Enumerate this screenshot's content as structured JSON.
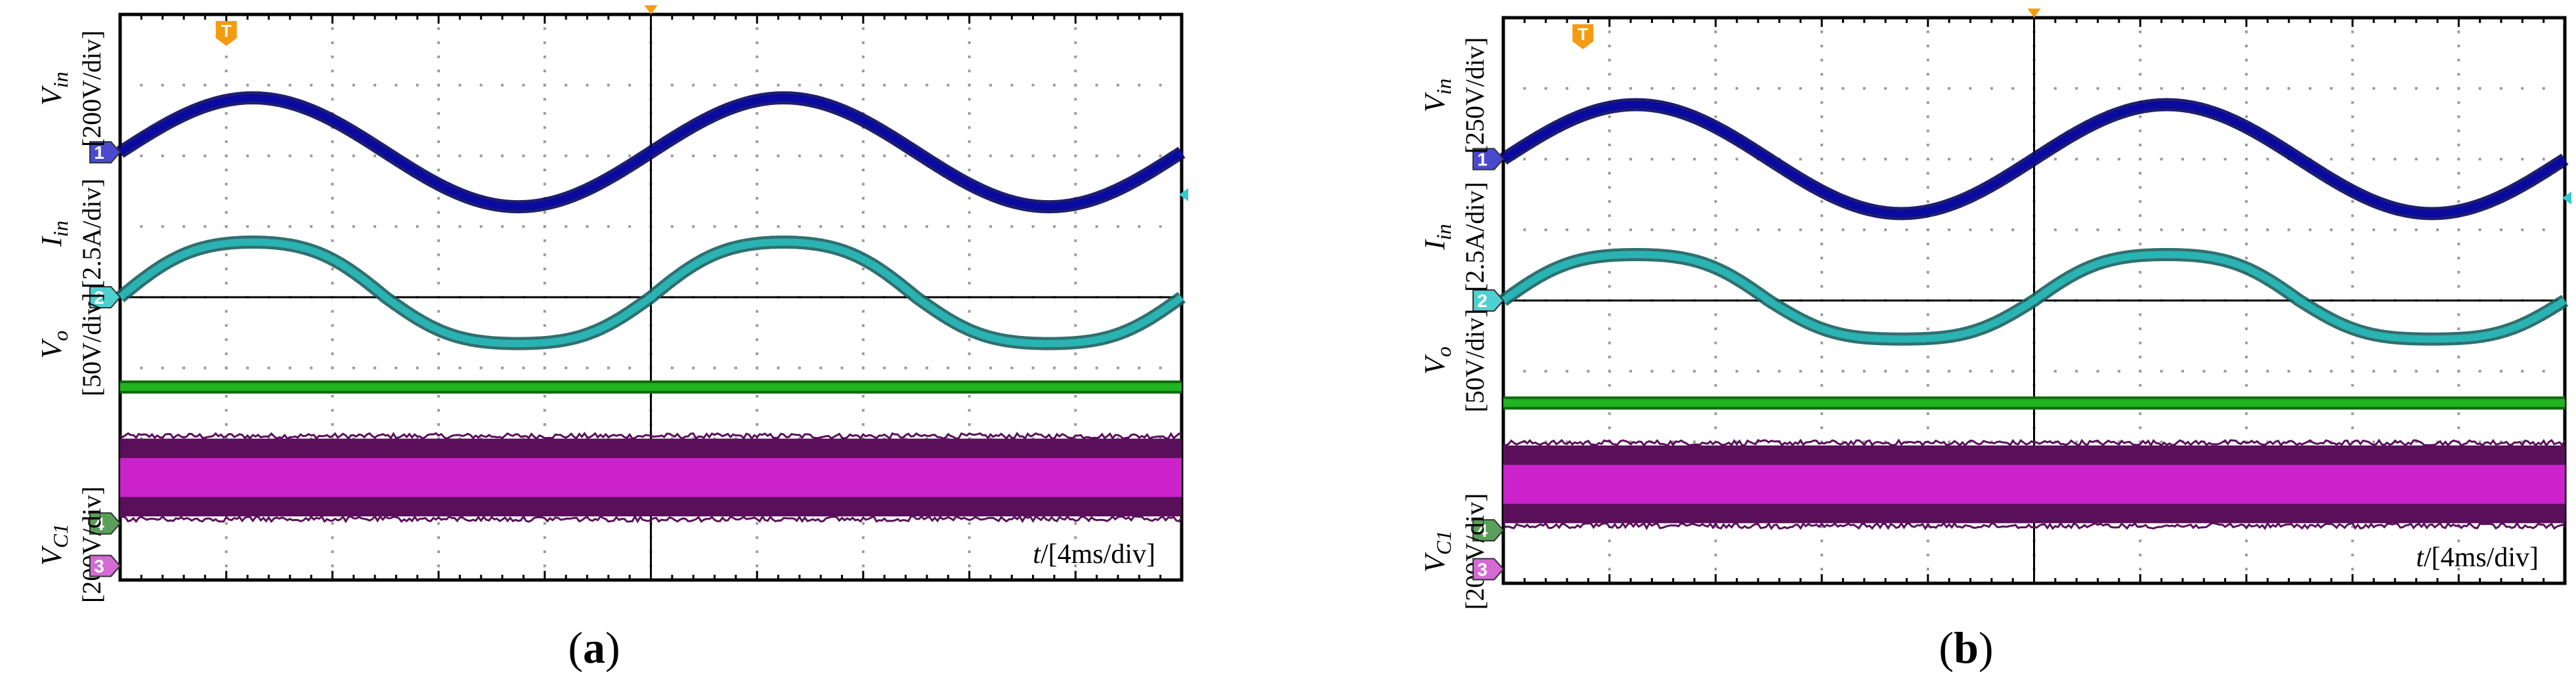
{
  "colors": {
    "vin": "#0a0aa0",
    "iin": "#2ab3b3",
    "vo": "#21b321",
    "vc1": "#cc22cc",
    "grid": "#9a9a9a",
    "trigger": "#f39c12"
  },
  "chart_data": [
    {
      "type": "line",
      "panel": "a",
      "caption": "a",
      "time_scale": "t/[4ms/div]",
      "x_divisions": 10,
      "y_divisions": 8,
      "x_range_div": [
        0,
        10
      ],
      "grid": true,
      "series": [
        {
          "id": "vin",
          "label_main": "V",
          "label_sub": "in",
          "scale": "[200V/div]",
          "marker": "1",
          "kind": "sine",
          "center_div": 6.05,
          "amplitude_div": 0.77,
          "cycles": 2,
          "phase_deg": 0
        },
        {
          "id": "iin",
          "label_main": "I",
          "label_sub": "in",
          "scale": "[2.5A/div]",
          "marker": "2",
          "kind": "current",
          "center_div": 4.0,
          "amplitude_div": 0.83,
          "cycles": 2,
          "phase_deg": 0
        },
        {
          "id": "vo",
          "label_main": "V",
          "label_sub": "o",
          "scale": "[50V/div]",
          "marker": "",
          "kind": "dc",
          "level_div": 2.73
        },
        {
          "id": "vc1",
          "label_main": "V",
          "label_sub": "C1",
          "scale": "[200V/div]",
          "marker": "4",
          "kind": "ripple",
          "level_div": 1.45,
          "band_div": 0.55
        },
        {
          "id": "ref3",
          "label_main": "",
          "label_sub": "",
          "scale": "",
          "marker": "3",
          "kind": "marker-only",
          "level_div": 0.2
        }
      ],
      "trigger_label": "T"
    },
    {
      "type": "line",
      "panel": "b",
      "caption": "b",
      "time_scale": "t/[4ms/div]",
      "x_divisions": 10,
      "y_divisions": 8,
      "x_range_div": [
        0,
        10
      ],
      "grid": true,
      "series": [
        {
          "id": "vin",
          "label_main": "V",
          "label_sub": "in",
          "scale": "[250V/div]",
          "marker": "1",
          "kind": "sine",
          "center_div": 6.0,
          "amplitude_div": 0.77,
          "cycles": 2,
          "phase_deg": 0
        },
        {
          "id": "iin",
          "label_main": "I",
          "label_sub": "in",
          "scale": "[2.5A/div]",
          "marker": "2",
          "kind": "current",
          "center_div": 4.0,
          "amplitude_div": 0.7,
          "cycles": 2,
          "phase_deg": 0
        },
        {
          "id": "vo",
          "label_main": "V",
          "label_sub": "o",
          "scale": "[50V/div]",
          "marker": "",
          "kind": "dc",
          "level_div": 2.55
        },
        {
          "id": "vc1",
          "label_main": "V",
          "label_sub": "C1",
          "scale": "[200V/div]",
          "marker": "4",
          "kind": "ripple",
          "level_div": 1.4,
          "band_div": 0.55
        },
        {
          "id": "ref3",
          "label_main": "",
          "label_sub": "",
          "scale": "",
          "marker": "3",
          "kind": "marker-only",
          "level_div": 0.2
        }
      ],
      "trigger_label": "T"
    }
  ]
}
